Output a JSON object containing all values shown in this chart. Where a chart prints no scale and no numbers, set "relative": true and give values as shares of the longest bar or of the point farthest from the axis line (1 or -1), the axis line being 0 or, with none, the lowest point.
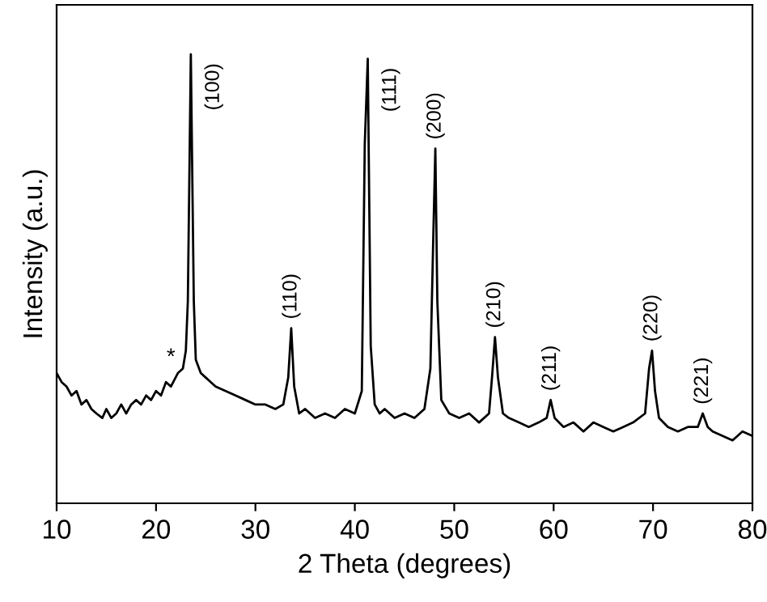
{
  "chart_data": {
    "type": "line",
    "relative": true,
    "xlabel": "2 Theta (degrees)",
    "ylabel": "Intensity (a.u.)",
    "xlim": [
      10,
      80
    ],
    "xticks": [
      10,
      20,
      30,
      40,
      50,
      60,
      70,
      80
    ],
    "tick_labels": "x",
    "grid": false,
    "legend": false,
    "marker": "none",
    "line_style": "solid",
    "series": [
      {
        "color": "#000000",
        "x": [
          10,
          10.5,
          11,
          11.5,
          12,
          12.5,
          13,
          13.5,
          14,
          14.6,
          15,
          15.5,
          16,
          16.5,
          17,
          17.5,
          18,
          18.5,
          19,
          19.5,
          20,
          20.5,
          21,
          21.5,
          22.2,
          22.7,
          23.0,
          23.2,
          23.5,
          23.8,
          24.0,
          24.5,
          25,
          25.5,
          26,
          27,
          28,
          29,
          30,
          31,
          32,
          32.8,
          33.3,
          33.6,
          33.9,
          34.4,
          35,
          36,
          37,
          38,
          39,
          40,
          40.7,
          41.0,
          41.3,
          41.6,
          42.0,
          42.5,
          43,
          44,
          45,
          46,
          47,
          47.6,
          47.9,
          48.1,
          48.3,
          48.7,
          49.5,
          50.5,
          51.5,
          52.5,
          53.5,
          53.8,
          54.1,
          54.4,
          54.9,
          55.5,
          56.5,
          57.5,
          58.5,
          59.3,
          59.7,
          60.1,
          61,
          62,
          63,
          64,
          65,
          66,
          67,
          68,
          69.2,
          69.6,
          69.9,
          70.2,
          70.6,
          71.5,
          72.5,
          73.5,
          74.5,
          75.0,
          75.5,
          76,
          77,
          78,
          79,
          80
        ],
        "values": [
          0.29,
          0.27,
          0.26,
          0.24,
          0.25,
          0.22,
          0.23,
          0.21,
          0.2,
          0.19,
          0.21,
          0.19,
          0.2,
          0.22,
          0.2,
          0.22,
          0.23,
          0.22,
          0.24,
          0.23,
          0.25,
          0.24,
          0.27,
          0.26,
          0.29,
          0.3,
          0.34,
          0.45,
          1.0,
          0.45,
          0.32,
          0.29,
          0.28,
          0.27,
          0.26,
          0.25,
          0.24,
          0.23,
          0.22,
          0.22,
          0.21,
          0.22,
          0.28,
          0.39,
          0.26,
          0.2,
          0.21,
          0.19,
          0.2,
          0.19,
          0.21,
          0.2,
          0.25,
          0.8,
          0.99,
          0.35,
          0.22,
          0.2,
          0.21,
          0.19,
          0.2,
          0.19,
          0.21,
          0.3,
          0.6,
          0.79,
          0.45,
          0.23,
          0.2,
          0.19,
          0.2,
          0.18,
          0.2,
          0.28,
          0.37,
          0.28,
          0.2,
          0.19,
          0.18,
          0.17,
          0.18,
          0.19,
          0.23,
          0.19,
          0.17,
          0.18,
          0.16,
          0.18,
          0.17,
          0.16,
          0.17,
          0.18,
          0.2,
          0.3,
          0.34,
          0.25,
          0.19,
          0.17,
          0.16,
          0.17,
          0.17,
          0.2,
          0.17,
          0.16,
          0.15,
          0.14,
          0.16,
          0.15
        ]
      }
    ],
    "annotations": [
      {
        "text": "(100)",
        "x": 23.5,
        "y": 1.0
      },
      {
        "text": "(110)",
        "x": 33.6,
        "y": 0.39
      },
      {
        "text": "(111)",
        "x": 41.3,
        "y": 0.99
      },
      {
        "text": "(200)",
        "x": 48.1,
        "y": 0.79
      },
      {
        "text": "(210)",
        "x": 54.1,
        "y": 0.37
      },
      {
        "text": "(211)",
        "x": 59.7,
        "y": 0.23
      },
      {
        "text": "(220)",
        "x": 69.9,
        "y": 0.34
      },
      {
        "text": "(221)",
        "x": 75.0,
        "y": 0.2
      },
      {
        "text": "*",
        "x": 21.5,
        "y": 0.26
      }
    ]
  }
}
